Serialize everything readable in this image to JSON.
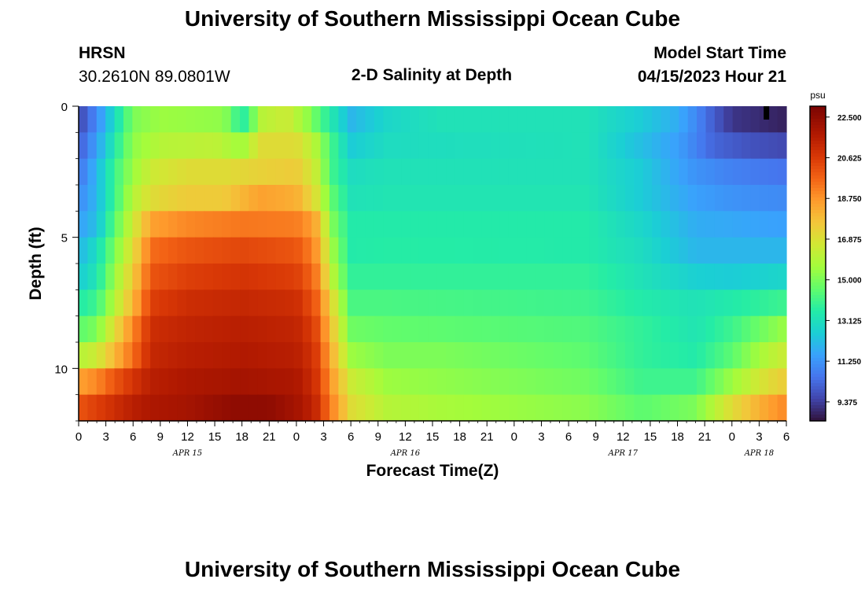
{
  "header": {
    "title": "University of Southern Mississippi Ocean Cube",
    "station": "HRSN",
    "coords": "30.2610N  89.0801W",
    "subtitle": "2-D Salinity at Depth",
    "model_label": "Model Start Time",
    "model_time": "04/15/2023 Hour 21"
  },
  "footer": {
    "title": "University of Southern Mississippi Ocean Cube"
  },
  "colors": {
    "background": "#ffffff",
    "axis": "#000000"
  },
  "chart_data": {
    "type": "heatmap",
    "title": "2-D Salinity at Depth",
    "xlabel": "Forecast Time(Z)",
    "ylabel": "Depth (ft)",
    "x_ticks": [
      "0",
      "3",
      "6",
      "9",
      "12",
      "15",
      "18",
      "21",
      "0",
      "3",
      "6",
      "9",
      "12",
      "15",
      "18",
      "21",
      "0",
      "3",
      "6",
      "9",
      "12",
      "15",
      "18",
      "21",
      "0",
      "3",
      "6"
    ],
    "x_dates": [
      {
        "label": "APR 15",
        "hours_from_start": 12
      },
      {
        "label": "APR 16",
        "hours_from_start": 36
      },
      {
        "label": "APR 17",
        "hours_from_start": 60
      },
      {
        "label": "APR 18",
        "hours_from_start": 75
      }
    ],
    "x_range_hours": [
      0,
      78
    ],
    "y_ticks": [
      "0",
      "5",
      "10"
    ],
    "y_range_ft": [
      0,
      12
    ],
    "depth_levels": 12,
    "time_steps": 79,
    "colorbar": {
      "unit": "psu",
      "min": 8.5,
      "max": 23.0,
      "labels": [
        "22.500",
        "20.625",
        "18.750",
        "16.875",
        "15.000",
        "13.125",
        "11.250",
        "9.375"
      ]
    },
    "salinity_psu": {
      "note": "rows are depth layers from 0 ft to 12 ft; values are piecewise-linear in forecast hour [hour, psu]",
      "rows": [
        [
          [
            0,
            9.5
          ],
          [
            2,
            11
          ],
          [
            4,
            13
          ],
          [
            5,
            14
          ],
          [
            6,
            15
          ],
          [
            9,
            15.5
          ],
          [
            16,
            15.3
          ],
          [
            18,
            13.5
          ],
          [
            19,
            14.5
          ],
          [
            20,
            16
          ],
          [
            23,
            16.5
          ],
          [
            25,
            15.5
          ],
          [
            27,
            14
          ],
          [
            30,
            12
          ],
          [
            34,
            12.8
          ],
          [
            40,
            13.2
          ],
          [
            56,
            13.2
          ],
          [
            62,
            12.5
          ],
          [
            66,
            11.8
          ],
          [
            68,
            11
          ],
          [
            70,
            10
          ],
          [
            72,
            9.2
          ],
          [
            78,
            8.8
          ]
        ],
        [
          [
            0,
            10
          ],
          [
            2,
            11.5
          ],
          [
            4,
            13.5
          ],
          [
            6,
            15.3
          ],
          [
            9,
            16
          ],
          [
            15,
            16.2
          ],
          [
            18,
            15.5
          ],
          [
            20,
            17
          ],
          [
            24,
            17
          ],
          [
            26,
            16
          ],
          [
            28,
            14
          ],
          [
            30,
            12.5
          ],
          [
            34,
            13
          ],
          [
            56,
            13.2
          ],
          [
            62,
            12.2
          ],
          [
            66,
            11.5
          ],
          [
            70,
            10.2
          ],
          [
            74,
            9.8
          ],
          [
            78,
            9.6
          ]
        ],
        [
          [
            0,
            10.5
          ],
          [
            2,
            12
          ],
          [
            4,
            14
          ],
          [
            6,
            15.5
          ],
          [
            8,
            16.5
          ],
          [
            12,
            17
          ],
          [
            16,
            17
          ],
          [
            20,
            17.3
          ],
          [
            24,
            17.5
          ],
          [
            26,
            16.5
          ],
          [
            28,
            14
          ],
          [
            30,
            13
          ],
          [
            34,
            13.2
          ],
          [
            56,
            13.2
          ],
          [
            62,
            12.5
          ],
          [
            68,
            11.2
          ],
          [
            72,
            10.8
          ],
          [
            78,
            10.5
          ]
        ],
        [
          [
            0,
            11
          ],
          [
            2,
            12
          ],
          [
            4,
            14
          ],
          [
            6,
            16
          ],
          [
            8,
            17
          ],
          [
            12,
            17.5
          ],
          [
            16,
            17.5
          ],
          [
            20,
            18.5
          ],
          [
            24,
            18.2
          ],
          [
            26,
            17
          ],
          [
            28,
            14.5
          ],
          [
            30,
            13.2
          ],
          [
            34,
            13.3
          ],
          [
            56,
            13.3
          ],
          [
            62,
            12.5
          ],
          [
            68,
            11.5
          ],
          [
            72,
            11.2
          ],
          [
            78,
            11
          ]
        ],
        [
          [
            0,
            11.5
          ],
          [
            2,
            12.2
          ],
          [
            4,
            14.5
          ],
          [
            6,
            16.5
          ],
          [
            8,
            18.5
          ],
          [
            12,
            19
          ],
          [
            18,
            19.3
          ],
          [
            24,
            19.2
          ],
          [
            26,
            18.5
          ],
          [
            28,
            15
          ],
          [
            30,
            13.5
          ],
          [
            34,
            13.5
          ],
          [
            56,
            13.5
          ],
          [
            62,
            12.8
          ],
          [
            68,
            11.8
          ],
          [
            78,
            11.5
          ]
        ],
        [
          [
            0,
            12
          ],
          [
            2,
            13
          ],
          [
            4,
            15
          ],
          [
            6,
            17
          ],
          [
            8,
            19.5
          ],
          [
            12,
            20
          ],
          [
            18,
            20.3
          ],
          [
            24,
            20
          ],
          [
            26,
            19
          ],
          [
            28,
            15.5
          ],
          [
            30,
            13.5
          ],
          [
            34,
            13.6
          ],
          [
            56,
            13.5
          ],
          [
            62,
            13
          ],
          [
            68,
            12
          ],
          [
            78,
            12
          ]
        ],
        [
          [
            0,
            12.5
          ],
          [
            2,
            13.3
          ],
          [
            4,
            15.5
          ],
          [
            6,
            17.5
          ],
          [
            8,
            20
          ],
          [
            12,
            20.5
          ],
          [
            18,
            20.8
          ],
          [
            24,
            20.5
          ],
          [
            26,
            19.5
          ],
          [
            28,
            16
          ],
          [
            30,
            13.8
          ],
          [
            34,
            13.8
          ],
          [
            56,
            13.8
          ],
          [
            62,
            13.2
          ],
          [
            68,
            12.6
          ],
          [
            72,
            12.5
          ],
          [
            78,
            12.8
          ]
        ],
        [
          [
            0,
            13.5
          ],
          [
            2,
            14
          ],
          [
            4,
            16
          ],
          [
            6,
            18
          ],
          [
            8,
            20.5
          ],
          [
            12,
            21
          ],
          [
            18,
            21.2
          ],
          [
            24,
            21
          ],
          [
            26,
            20
          ],
          [
            28,
            17
          ],
          [
            30,
            14.2
          ],
          [
            34,
            14.2
          ],
          [
            56,
            14
          ],
          [
            62,
            13.5
          ],
          [
            68,
            13.2
          ],
          [
            72,
            13.5
          ],
          [
            78,
            14
          ]
        ],
        [
          [
            0,
            14.5
          ],
          [
            2,
            15
          ],
          [
            4,
            17
          ],
          [
            6,
            19
          ],
          [
            8,
            21
          ],
          [
            12,
            21.3
          ],
          [
            18,
            21.5
          ],
          [
            24,
            21.3
          ],
          [
            26,
            20.5
          ],
          [
            28,
            17.5
          ],
          [
            30,
            14.8
          ],
          [
            34,
            14.6
          ],
          [
            56,
            14.3
          ],
          [
            62,
            13.8
          ],
          [
            68,
            13.3
          ],
          [
            72,
            14
          ],
          [
            76,
            15
          ],
          [
            78,
            15.5
          ]
        ],
        [
          [
            0,
            16
          ],
          [
            2,
            16.5
          ],
          [
            4,
            18
          ],
          [
            6,
            19.5
          ],
          [
            8,
            21.2
          ],
          [
            12,
            21.5
          ],
          [
            18,
            21.7
          ],
          [
            24,
            21.5
          ],
          [
            26,
            20.8
          ],
          [
            28,
            18
          ],
          [
            30,
            15.5
          ],
          [
            34,
            15
          ],
          [
            40,
            15
          ],
          [
            56,
            14.5
          ],
          [
            62,
            13.8
          ],
          [
            68,
            13.5
          ],
          [
            72,
            14.5
          ],
          [
            76,
            16
          ],
          [
            78,
            16.5
          ]
        ],
        [
          [
            0,
            18.5
          ],
          [
            2,
            19
          ],
          [
            4,
            20
          ],
          [
            6,
            20.8
          ],
          [
            8,
            21.5
          ],
          [
            12,
            21.8
          ],
          [
            18,
            22
          ],
          [
            24,
            21.8
          ],
          [
            26,
            21
          ],
          [
            28,
            18.5
          ],
          [
            30,
            16.5
          ],
          [
            34,
            15.5
          ],
          [
            40,
            15.3
          ],
          [
            56,
            14.8
          ],
          [
            62,
            14
          ],
          [
            68,
            14
          ],
          [
            72,
            15.5
          ],
          [
            76,
            17
          ],
          [
            78,
            17.5
          ]
        ],
        [
          [
            0,
            20
          ],
          [
            2,
            20.5
          ],
          [
            4,
            21
          ],
          [
            6,
            21.5
          ],
          [
            8,
            21.8
          ],
          [
            12,
            22
          ],
          [
            17,
            22.5
          ],
          [
            21,
            22.5
          ],
          [
            24,
            22
          ],
          [
            26,
            21.3
          ],
          [
            28,
            19
          ],
          [
            30,
            17
          ],
          [
            34,
            16
          ],
          [
            40,
            15.7
          ],
          [
            56,
            15.2
          ],
          [
            62,
            14.5
          ],
          [
            68,
            15
          ],
          [
            72,
            17
          ],
          [
            76,
            18.5
          ],
          [
            78,
            19
          ]
        ]
      ]
    }
  }
}
